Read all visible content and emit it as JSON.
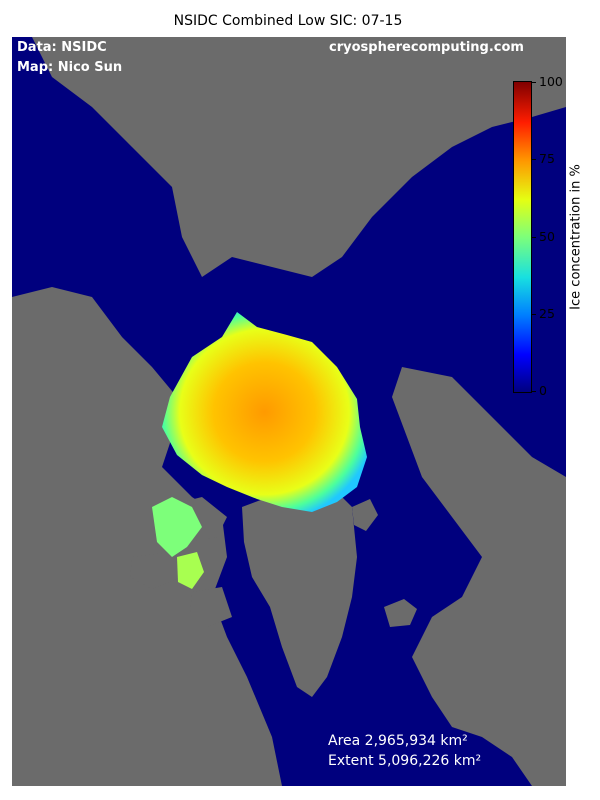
{
  "title": "NSIDC Combined Low SIC: 07-15",
  "credits": {
    "data": "Data: NSIDC",
    "map": "Map: Nico Sun",
    "site": "cryospherecomputing.com"
  },
  "stats": {
    "area": "Area 2,965,934 km²",
    "extent": "Extent 5,096,226 km²"
  },
  "colorbar": {
    "label": "Ice concentration in %",
    "ticks": [
      "0",
      "25",
      "50",
      "75",
      "100"
    ],
    "min": 0,
    "max": 100,
    "colormap": "jet"
  },
  "colors": {
    "ocean": "#00007e",
    "land": "#6b6b6b"
  }
}
